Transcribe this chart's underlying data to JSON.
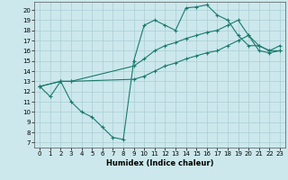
{
  "title": "",
  "xlabel": "Humidex (Indice chaleur)",
  "bg_color": "#cce8ec",
  "line_color": "#1a7a6e",
  "grid_color": "#aacdd4",
  "xlim": [
    -0.5,
    23.5
  ],
  "ylim": [
    6.5,
    20.8
  ],
  "yticks": [
    7,
    8,
    9,
    10,
    11,
    12,
    13,
    14,
    15,
    16,
    17,
    18,
    19,
    20
  ],
  "xticks": [
    0,
    1,
    2,
    3,
    4,
    5,
    6,
    7,
    8,
    9,
    10,
    11,
    12,
    13,
    14,
    15,
    16,
    17,
    18,
    19,
    20,
    21,
    22,
    23
  ],
  "line1_x": [
    0,
    1,
    2,
    3,
    4,
    5,
    6,
    7,
    8,
    9,
    10,
    11,
    12,
    13,
    14,
    15,
    16,
    17,
    18,
    19,
    20,
    21,
    22,
    23
  ],
  "line1_y": [
    12.5,
    11.5,
    13.0,
    11.0,
    10.0,
    9.5,
    8.5,
    7.5,
    7.3,
    15.0,
    18.5,
    19.0,
    18.5,
    18.0,
    20.2,
    20.3,
    20.5,
    19.5,
    19.0,
    17.5,
    16.5,
    16.5,
    16.0,
    16.5
  ],
  "line2_x": [
    0,
    2,
    3,
    9,
    10,
    11,
    12,
    13,
    14,
    15,
    16,
    17,
    18,
    19,
    20,
    21,
    22,
    23
  ],
  "line2_y": [
    12.5,
    13.0,
    13.0,
    14.5,
    15.2,
    16.0,
    16.5,
    16.8,
    17.2,
    17.5,
    17.8,
    18.0,
    18.5,
    19.0,
    17.5,
    16.5,
    16.0,
    16.0
  ],
  "line3_x": [
    0,
    2,
    3,
    9,
    10,
    11,
    12,
    13,
    14,
    15,
    16,
    17,
    18,
    19,
    20,
    21,
    22,
    23
  ],
  "line3_y": [
    12.5,
    13.0,
    13.0,
    13.2,
    13.5,
    14.0,
    14.5,
    14.8,
    15.2,
    15.5,
    15.8,
    16.0,
    16.5,
    17.0,
    17.5,
    16.0,
    15.8,
    16.0
  ]
}
